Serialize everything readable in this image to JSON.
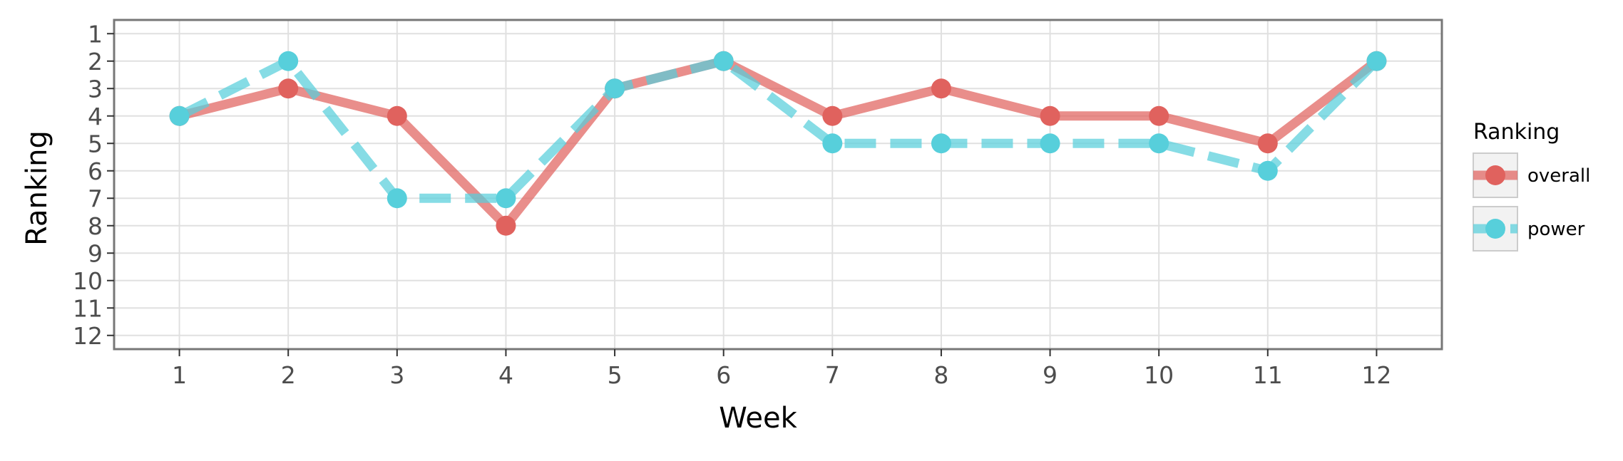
{
  "chart_data": {
    "type": "line",
    "xlabel": "Week",
    "ylabel": "Ranking",
    "x": [
      1,
      2,
      3,
      4,
      5,
      6,
      7,
      8,
      9,
      10,
      11,
      12
    ],
    "x_ticks": [
      "1",
      "2",
      "3",
      "4",
      "5",
      "6",
      "7",
      "8",
      "9",
      "10",
      "11",
      "12"
    ],
    "y_ticks": [
      "1",
      "2",
      "3",
      "4",
      "5",
      "6",
      "7",
      "8",
      "9",
      "10",
      "11",
      "12"
    ],
    "xlim": [
      0.4,
      12.6
    ],
    "ylim": [
      12.5,
      0.5
    ],
    "y_reversed": true,
    "grid": true,
    "legend": {
      "title": "Ranking",
      "position": "right"
    },
    "series": [
      {
        "name": "overall",
        "values": [
          4,
          3,
          4,
          8,
          3,
          2,
          4,
          3,
          4,
          4,
          5,
          2
        ],
        "color": "#E0625E",
        "line_style": "solid"
      },
      {
        "name": "power",
        "values": [
          4,
          2,
          7,
          7,
          3,
          2,
          5,
          5,
          5,
          5,
          6,
          2
        ],
        "color": "#57CFDB",
        "line_style": "dashed"
      }
    ]
  }
}
